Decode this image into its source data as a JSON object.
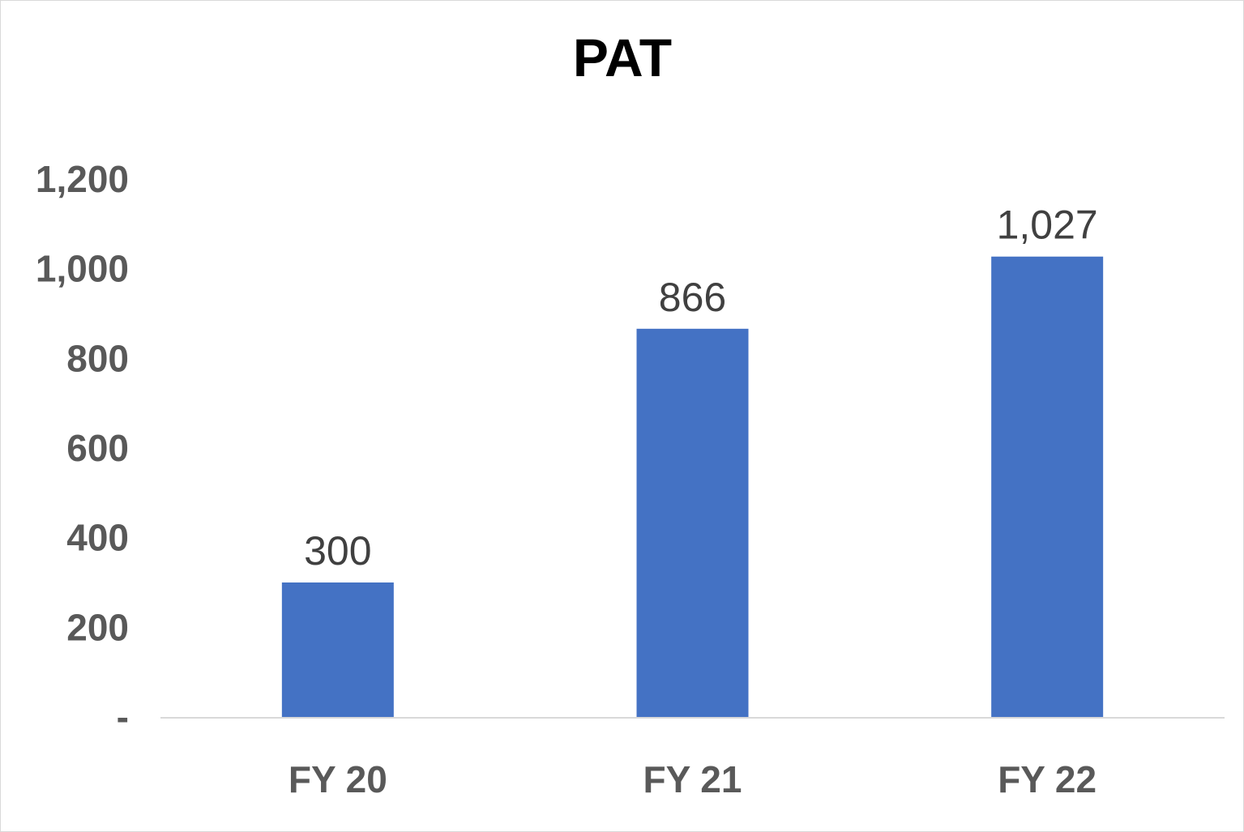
{
  "chart_data": {
    "type": "bar",
    "title": "PAT",
    "categories": [
      "FY 20",
      "FY 21",
      "FY 22"
    ],
    "values": [
      300,
      866,
      1027
    ],
    "data_labels": [
      "300",
      "866",
      "1,027"
    ],
    "ylim": [
      0,
      1200
    ],
    "yticks": [
      0,
      200,
      400,
      600,
      800,
      1000,
      1200
    ],
    "ytick_labels": [
      "-",
      "200",
      "400",
      "600",
      "800",
      "1,000",
      "1,200"
    ],
    "grid": false,
    "legend": "none",
    "bar_color": "#4472C4",
    "axis_line_color": "#d9d9d9"
  }
}
